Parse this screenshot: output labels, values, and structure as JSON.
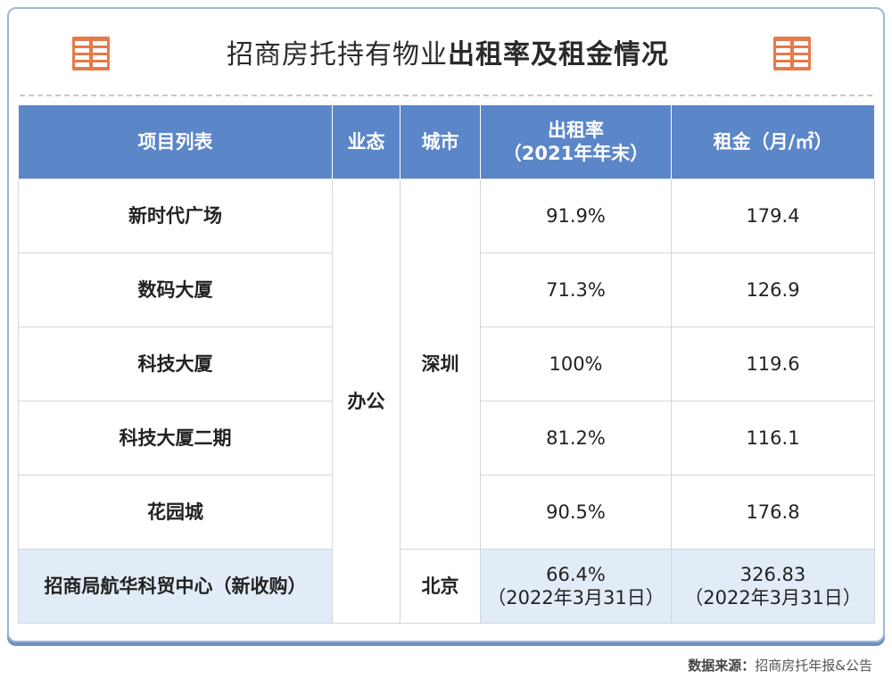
{
  "header": {
    "title_normal": "招商房托持有物业",
    "title_bold": "出租率及租金情况",
    "icon": "table-icon",
    "accent_color": "#e57a4a"
  },
  "table": {
    "columns": [
      "项目列表",
      "业态",
      "城市",
      "出租率",
      "（2021年年末）",
      "租金（月/㎡）"
    ],
    "rows": [
      {
        "name": "新时代广场",
        "occupancy": "91.9%",
        "rent": "179.4"
      },
      {
        "name": "数码大厦",
        "occupancy": "71.3%",
        "rent": "126.9"
      },
      {
        "name": "科技大厦",
        "occupancy": "100%",
        "rent": "119.6"
      },
      {
        "name": "科技大厦二期",
        "occupancy": "81.2%",
        "rent": "116.1"
      },
      {
        "name": "花园城",
        "occupancy": "90.5%",
        "rent": "176.8"
      }
    ],
    "type_merged": "办公",
    "city_merged": "深圳",
    "last_row": {
      "name": "招商局航华科贸中心（新收购）",
      "city": "北京",
      "occupancy": "66.4%",
      "occupancy_note": "（2022年3月31日）",
      "rent": "326.83",
      "rent_note": "（2022年3月31日）"
    },
    "header_color": "#5b86c8",
    "highlight_color": "#e2ecf7"
  },
  "footer": {
    "source_label": "数据来源：",
    "source_text": "招商房托年报&公告"
  }
}
